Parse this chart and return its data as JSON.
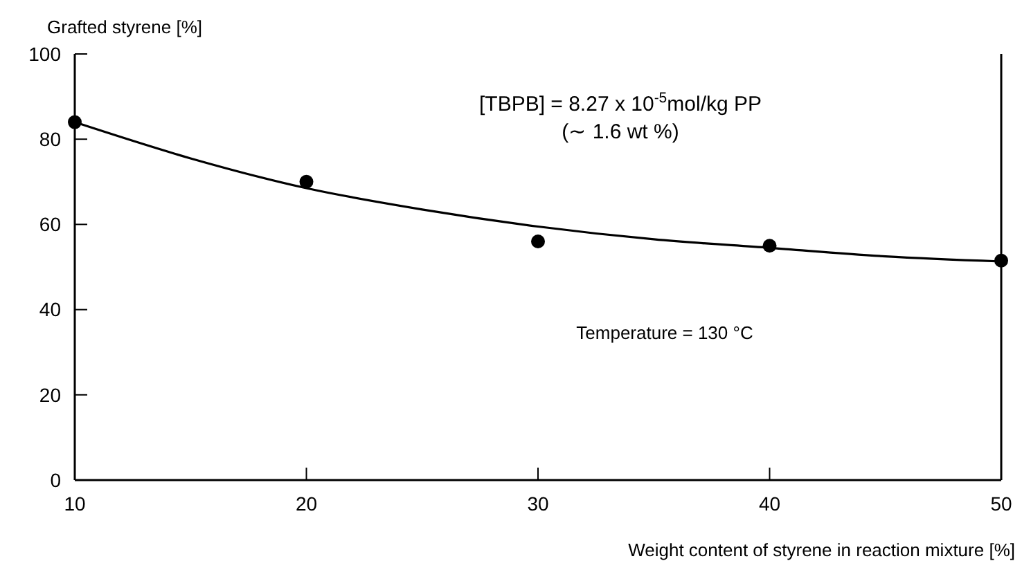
{
  "chart_data": {
    "type": "scatter",
    "ylabel": "Grafted styrene [%]",
    "xlabel": "Weight content of styrene in reaction mixture  [%]",
    "xlim": [
      10,
      50
    ],
    "xticks": [
      10,
      20,
      30,
      40,
      50
    ],
    "ylim": [
      0,
      100
    ],
    "yticks": [
      0,
      20,
      40,
      60,
      80,
      100
    ],
    "grid": false,
    "annotations": [
      "[TBPB] = 8.27 x 10$^{-5}$mol/kg PP",
      "(∼ 1.6 wt %)",
      "Temperature = 130 °C"
    ],
    "series": [
      {
        "color": "#000000",
        "marker": "circle",
        "x": [
          10,
          20,
          30,
          40,
          50
        ],
        "values": [
          84,
          70,
          56,
          55,
          51.5
        ]
      },
      {
        "type": "line",
        "color": "#000000",
        "line_style": "solid",
        "x": [
          10,
          15,
          20,
          25,
          30,
          35,
          40,
          45,
          50
        ],
        "values": [
          84,
          75.5,
          68.5,
          63.5,
          59.5,
          56.5,
          54.5,
          52.5,
          51.3
        ]
      }
    ]
  }
}
